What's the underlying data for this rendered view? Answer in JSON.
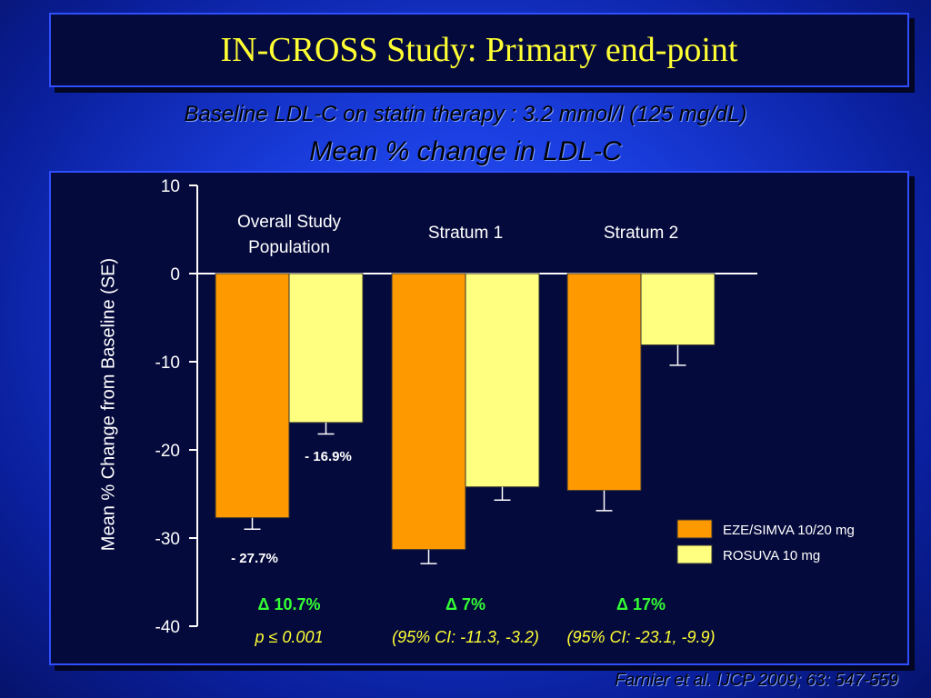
{
  "title": "IN-CROSS Study:  Primary end-point",
  "subtitle": "Baseline LDL-C on statin therapy : 3.2 mmol/l (125 mg/dL)",
  "heading": "Mean % change in LDL-C",
  "citation": "Farnier et al. IJCP 2009; 63: 547-559",
  "colors": {
    "eze_simva": "#ff9900",
    "rosuva": "#ffff80",
    "delta": "#33ff33",
    "stat": "#ffff33"
  },
  "chart_data": {
    "type": "bar",
    "ylabel": "Mean % Change from Baseline (SE)",
    "ylim": [
      -40,
      10
    ],
    "yticks": [
      "10",
      "0",
      "-10",
      "-20",
      "-30",
      "-40"
    ],
    "categories": [
      [
        "Overall Study",
        "Population"
      ],
      [
        "Stratum 1"
      ],
      [
        "Stratum 2"
      ]
    ],
    "series": [
      {
        "name": "EZE/SIMVA 10/20 mg",
        "values": [
          -27.7,
          -31.3,
          -24.6
        ],
        "se_low": [
          -29.0,
          -32.9,
          -26.9
        ]
      },
      {
        "name": "ROSUVA 10 mg",
        "values": [
          -16.9,
          -24.2,
          -8.1
        ],
        "se_low": [
          -18.2,
          -25.7,
          -10.4
        ]
      }
    ],
    "value_labels": [
      {
        "text": "- 27.7%",
        "series": 0,
        "category": 0
      },
      {
        "text": "- 16.9%",
        "series": 1,
        "category": 0
      }
    ],
    "deltas": [
      "Δ 10.7%",
      "Δ 7%",
      "Δ 17%"
    ],
    "stats": [
      "p ≤ 0.001",
      "(95% CI: -11.3, -3.2)",
      "(95% CI: -23.1, -9.9)"
    ],
    "legend_position": "bottom-right"
  }
}
